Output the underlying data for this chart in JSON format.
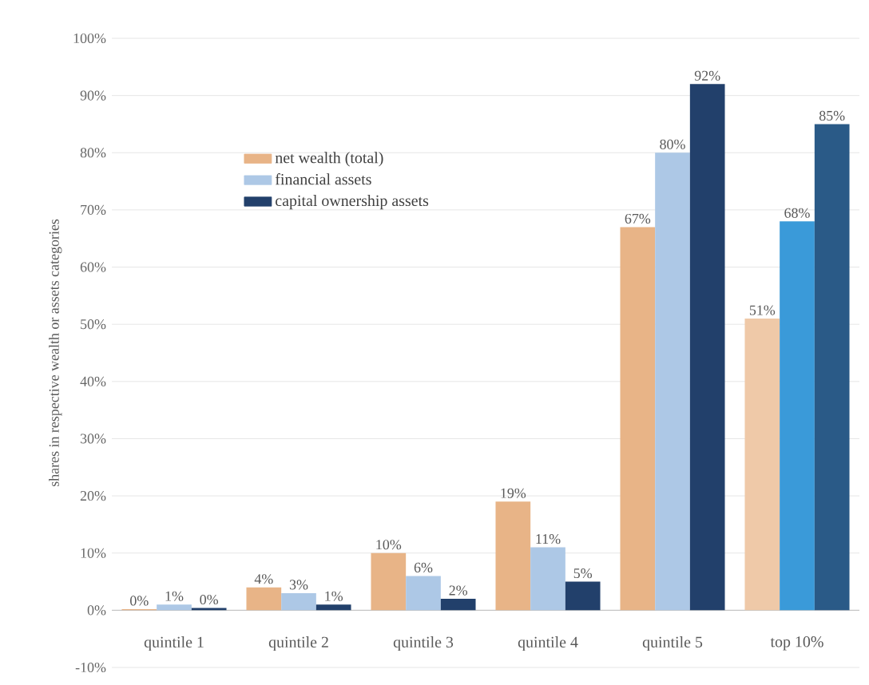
{
  "chart_data": {
    "type": "bar",
    "ylabel": "shares in respective wealth or assets categories",
    "categories": [
      "quintile 1",
      "quintile 2",
      "quintile 3",
      "quintile 4",
      "quintile 5",
      "top 10%"
    ],
    "series": [
      {
        "name": "net wealth (total)",
        "color": "#e8b487",
        "colors": [
          "#e8b487",
          "#e8b487",
          "#e8b487",
          "#e8b487",
          "#e8b487",
          "#efc9a8"
        ],
        "values": [
          0.2,
          4,
          10,
          19,
          67,
          51
        ],
        "value_labels": [
          "0%",
          "4%",
          "10%",
          "19%",
          "67%",
          "51%"
        ]
      },
      {
        "name": "financial assets",
        "color": "#adc8e6",
        "colors": [
          "#adc8e6",
          "#adc8e6",
          "#adc8e6",
          "#adc8e6",
          "#adc8e6",
          "#3a9ad9"
        ],
        "values": [
          1,
          3,
          6,
          11,
          80,
          68
        ],
        "value_labels": [
          "1%",
          "3%",
          "6%",
          "11%",
          "80%",
          "68%"
        ]
      },
      {
        "name": "capital ownership assets",
        "color": "#22406b",
        "colors": [
          "#22406b",
          "#22406b",
          "#22406b",
          "#22406b",
          "#22406b",
          "#2a5a87"
        ],
        "values": [
          0.4,
          1,
          2,
          5,
          92,
          85
        ],
        "value_labels": [
          "0%",
          "1%",
          "2%",
          "5%",
          "92%",
          "85%"
        ]
      }
    ],
    "ylim": [
      -10,
      100
    ],
    "yticks": [
      {
        "value": -10,
        "label": "-10%"
      },
      {
        "value": 0,
        "label": "0%"
      },
      {
        "value": 10,
        "label": "10%"
      },
      {
        "value": 20,
        "label": "20%"
      },
      {
        "value": 30,
        "label": "30%"
      },
      {
        "value": 40,
        "label": "40%"
      },
      {
        "value": 50,
        "label": "50%"
      },
      {
        "value": 60,
        "label": "60%"
      },
      {
        "value": 70,
        "label": "70%"
      },
      {
        "value": 80,
        "label": "80%"
      },
      {
        "value": 90,
        "label": "90%"
      },
      {
        "value": 100,
        "label": "100%"
      }
    ],
    "grid": "y",
    "legend": "top left"
  }
}
